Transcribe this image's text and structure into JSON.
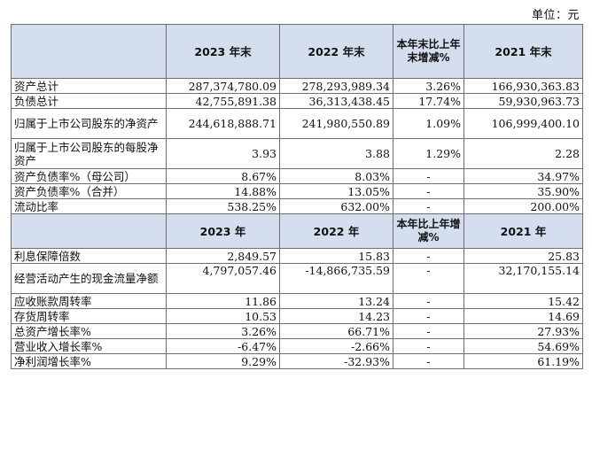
{
  "unit_label": "单位：元",
  "header1": {
    "blank": "",
    "c1": "2023 年末",
    "c2": "2022 年末",
    "c3": "本年末比上年末增减%",
    "c4": "2021 年末"
  },
  "section1": [
    {
      "label": "资产总计",
      "v1": "287,374,780.09",
      "v2": "278,293,989.34",
      "v3": "3.26%",
      "v4": "166,930,363.83"
    },
    {
      "label": "负债总计",
      "v1": "42,755,891.38",
      "v2": "36,313,438.45",
      "v3": "17.74%",
      "v4": "59,930,963.73"
    },
    {
      "label": "归属于上市公司股东的净资产",
      "v1": "244,618,888.71",
      "v2": "241,980,550.89",
      "v3": "1.09%",
      "v4": "106,999,400.10"
    },
    {
      "label": "归属于上市公司股东的每股净资产",
      "v1": "3.93",
      "v2": "3.88",
      "v3": "1.29%",
      "v4": "2.28"
    },
    {
      "label": "资产负债率%（母公司）",
      "v1": "8.67%",
      "v2": "8.03%",
      "v3": "-",
      "v4": "34.97%"
    },
    {
      "label": "资产负债率%（合并）",
      "v1": "14.88%",
      "v2": "13.05%",
      "v3": "-",
      "v4": "35.90%"
    },
    {
      "label": "流动比率",
      "v1": "538.25%",
      "v2": "632.00%",
      "v3": "-",
      "v4": "200.00%"
    }
  ],
  "header2": {
    "blank": "",
    "c1": "2023 年",
    "c2": "2022 年",
    "c3": "本年比上年增减%",
    "c4": "2021 年"
  },
  "section2": [
    {
      "label": "利息保障倍数",
      "v1": "2,849.57",
      "v2": "15.83",
      "v3": "-",
      "v4": "25.83"
    },
    {
      "label": "经营活动产生的现金流量净额",
      "v1": "4,797,057.46",
      "v2": "-14,866,735.59",
      "v3": "-",
      "v4": "32,170,155.14"
    },
    {
      "label": "应收账款周转率",
      "v1": "11.86",
      "v2": "13.24",
      "v3": "-",
      "v4": "15.42"
    },
    {
      "label": "存货周转率",
      "v1": "10.53",
      "v2": "14.23",
      "v3": "-",
      "v4": "14.69"
    },
    {
      "label": "总资产增长率%",
      "v1": "3.26%",
      "v2": "66.71%",
      "v3": "-",
      "v4": "27.93%"
    },
    {
      "label": "营业收入增长率%",
      "v1": "-6.47%",
      "v2": "-2.66%",
      "v3": "-",
      "v4": "54.69%"
    },
    {
      "label": "净利润增长率%",
      "v1": "9.29%",
      "v2": "-32.93%",
      "v3": "-",
      "v4": "61.19%"
    }
  ]
}
